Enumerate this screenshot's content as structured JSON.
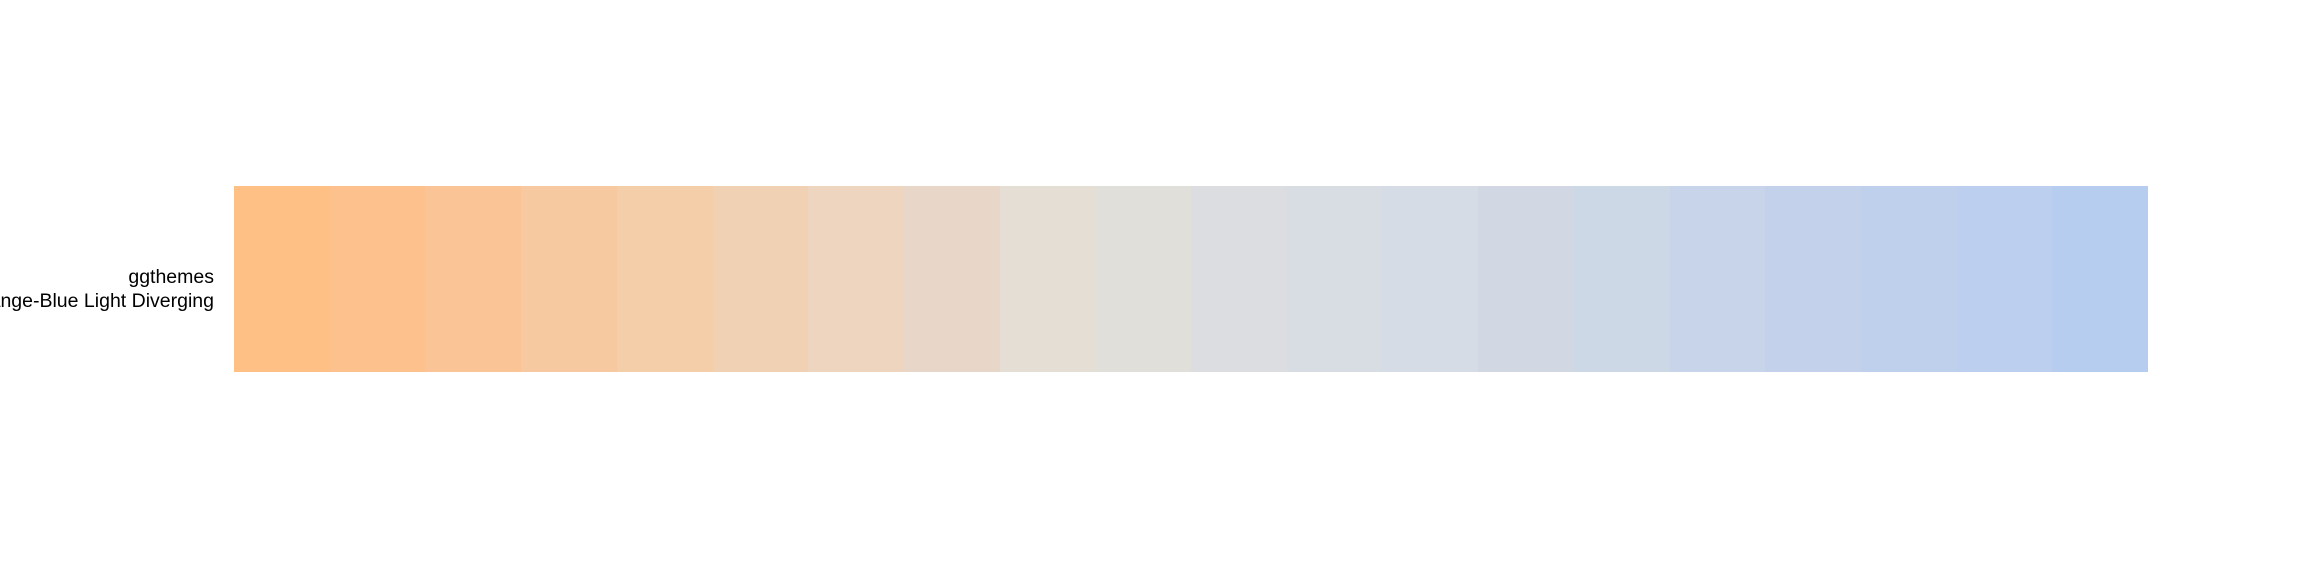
{
  "chart_data": {
    "type": "heatmap",
    "title": "",
    "row_label": {
      "package": "ggthemes",
      "palette": "Orange-Blue Light Diverging"
    },
    "colors": [
      "#FFC086",
      "#FDC18E",
      "#FAC497",
      "#F7C9A1",
      "#F4CDA9",
      "#F1D1B3",
      "#EDD5C0",
      "#E8D7C9",
      "#E5DED5",
      "#E0DFDA",
      "#DCDDE0",
      "#D8DDE4",
      "#D5DCE6",
      "#D2D7E4",
      "#CDD8E6",
      "#C8D4EA",
      "#C3D1EB",
      "#BFD0EC",
      "#BCCFEE",
      "#B7CDEF"
    ]
  }
}
